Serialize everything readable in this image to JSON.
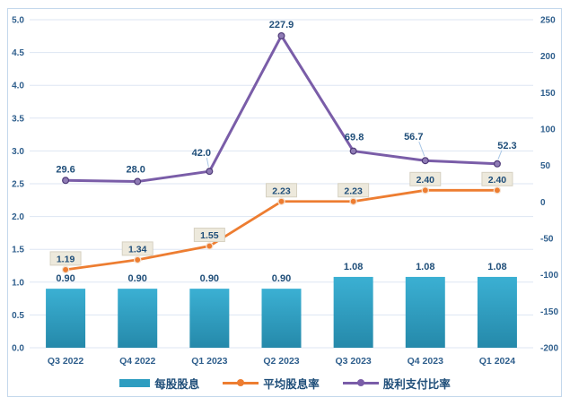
{
  "chart_data": {
    "type": "combo",
    "title": "",
    "categories": [
      "Q3 2022",
      "Q4 2022",
      "Q1 2023",
      "Q2 2023",
      "Q3 2023",
      "Q4 2023",
      "Q1 2024"
    ],
    "series": [
      {
        "name": "每股股息",
        "type": "bar",
        "axis": "left",
        "color": "#2E9DC0",
        "values": [
          0.9,
          0.9,
          0.9,
          0.9,
          1.08,
          1.08,
          1.08
        ],
        "labels": [
          "0.90",
          "0.90",
          "0.90",
          "0.90",
          "1.08",
          "1.08",
          "1.08"
        ]
      },
      {
        "name": "平均股息率",
        "type": "line",
        "axis": "left",
        "color": "#ED7D31",
        "values": [
          1.19,
          1.34,
          1.55,
          2.23,
          2.23,
          2.4,
          2.4
        ],
        "labels": [
          "1.19",
          "1.34",
          "1.55",
          "2.23",
          "2.23",
          "2.40",
          "2.40"
        ],
        "label_style": "boxed"
      },
      {
        "name": "股利支付比率",
        "type": "line",
        "axis": "right",
        "color": "#7A5DA8",
        "values": [
          29.6,
          28.0,
          42.0,
          227.9,
          69.8,
          56.7,
          52.3
        ],
        "labels": [
          "29.6",
          "28.0",
          "42.0",
          "227.9",
          "69.8",
          "56.7",
          "52.3"
        ],
        "label_style": "plain",
        "label_offsets": [
          [
            0,
            -13
          ],
          [
            -2,
            -14
          ],
          [
            -9,
            -21
          ],
          [
            0,
            -13
          ],
          [
            1,
            -16
          ],
          [
            -13,
            -27
          ],
          [
            11,
            -21
          ]
        ],
        "label_leaders": [
          false,
          false,
          true,
          false,
          false,
          true,
          true
        ]
      }
    ],
    "left_axis": {
      "min": 0,
      "max": 5,
      "step": 0.5,
      "ticks": [
        "0.0",
        "0.5",
        "1.0",
        "1.5",
        "2.0",
        "2.5",
        "3.0",
        "3.5",
        "4.0",
        "4.5",
        "5.0"
      ]
    },
    "right_axis": {
      "min": -200,
      "max": 250,
      "step": 50,
      "ticks": [
        "-200",
        "-150",
        "-100",
        "-50",
        "0",
        "50",
        "100",
        "150",
        "200",
        "250"
      ]
    },
    "grid": true,
    "legend_position": "bottom"
  },
  "colors": {
    "background": "#FFFFFF",
    "frame_border": "#C4D8EC",
    "grid": "#DDE6F3",
    "tick_label": "#2E5E8C",
    "data_label": "#1F4E79",
    "bar_top": "#3BB0D3",
    "bar_bottom": "#2589AA",
    "orange_marker_edge": "#F5E3D3",
    "purple_marker_fill": "#8F7BB5",
    "purple_marker_edge": "#4F3B78",
    "label_box_bg": "#EDE9DC",
    "label_box_border": "#D6D1C2",
    "leader": "#A8C6E5"
  }
}
